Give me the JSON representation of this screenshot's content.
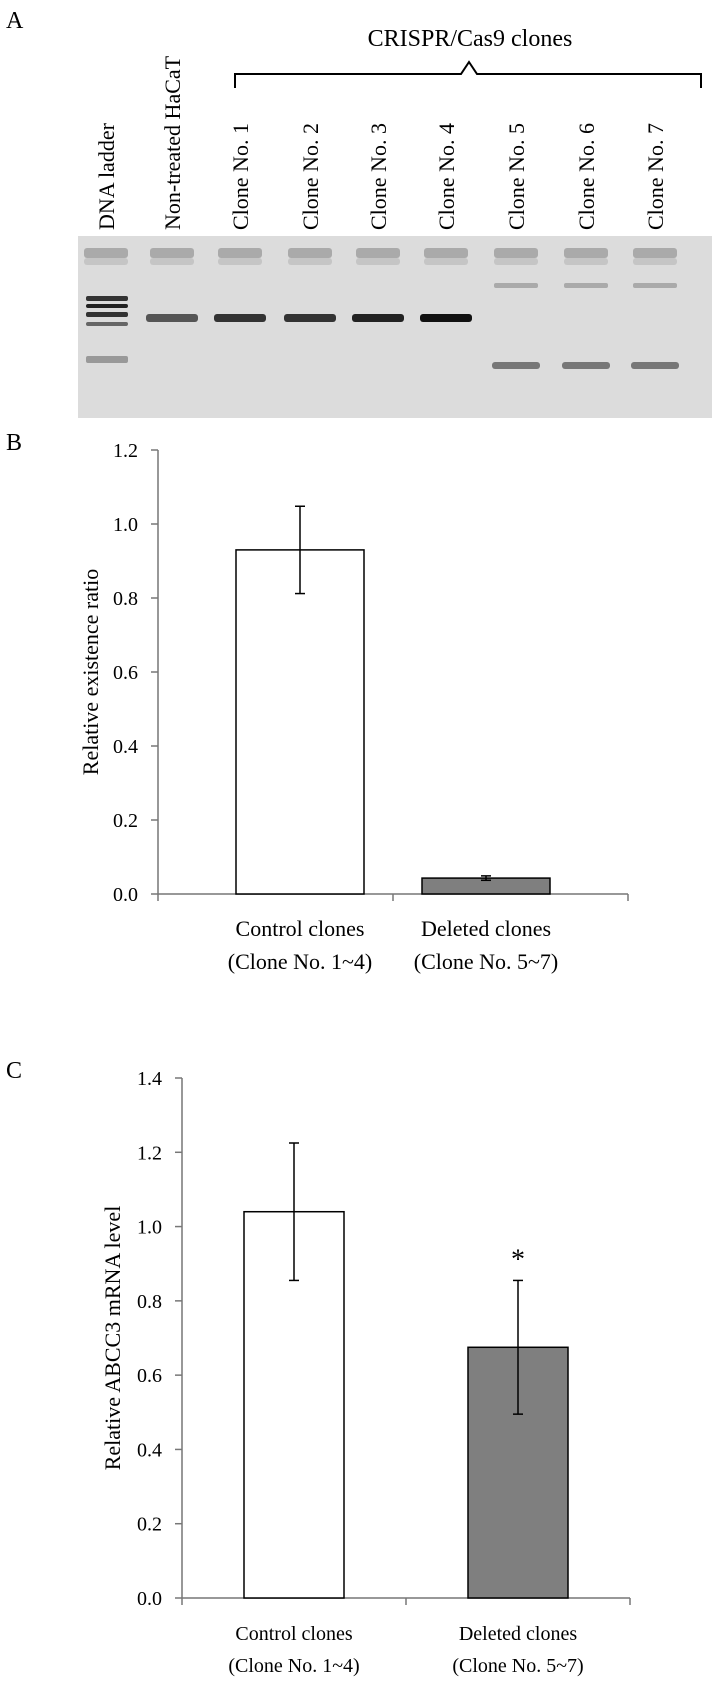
{
  "panelA": {
    "letter": "A",
    "bracket_label": "CRISPR/Cas9 clones",
    "lanes": [
      "DNA ladder",
      "Non-treated HaCaT",
      "Clone No. 1",
      "Clone No. 2",
      "Clone No. 3",
      "Clone No. 4",
      "Clone No. 5",
      "Clone No. 6",
      "Clone No. 7"
    ]
  },
  "chart_data": [
    {
      "letter": "B",
      "type": "bar",
      "categories": [
        [
          "Control clones",
          "(Clone No. 1~4)"
        ],
        [
          "Deleted clones",
          "(Clone No. 5~7)"
        ]
      ],
      "values": [
        0.93,
        0.043
      ],
      "errors": [
        0.118,
        0.006
      ],
      "bar_colors": [
        "#ffffff",
        "#7f7f7f"
      ],
      "ylabel": "Relative existence ratio",
      "ylim": [
        0,
        1.2
      ],
      "yticks": [
        "0.0",
        "0.2",
        "0.4",
        "0.6",
        "0.8",
        "1.0",
        "1.2"
      ],
      "annotations": [
        "",
        ""
      ],
      "grid": false
    },
    {
      "letter": "C",
      "type": "bar",
      "categories": [
        [
          "Control clones",
          "(Clone No. 1~4)"
        ],
        [
          "Deleted clones",
          "(Clone No. 5~7)"
        ]
      ],
      "values": [
        1.04,
        0.675
      ],
      "errors": [
        0.185,
        0.18
      ],
      "bar_colors": [
        "#ffffff",
        "#7f7f7f"
      ],
      "ylabel": "Relative ABCC3 mRNA level",
      "ylim": [
        0,
        1.4
      ],
      "yticks": [
        "0.0",
        "0.2",
        "0.4",
        "0.6",
        "0.8",
        "1.0",
        "1.2",
        "1.4"
      ],
      "annotations": [
        "",
        "*"
      ],
      "grid": false
    }
  ]
}
